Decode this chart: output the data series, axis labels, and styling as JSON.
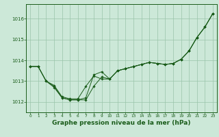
{
  "background_color": "#cce8d8",
  "grid_color": "#99c4aa",
  "line_color": "#1a5c1a",
  "marker_color": "#1a5c1a",
  "xlabel": "Graphe pression niveau de la mer (hPa)",
  "xlabel_fontsize": 6.5,
  "xlabel_color": "#1a5c1a",
  "xlim": [
    -0.5,
    23.5
  ],
  "ylim": [
    1011.5,
    1016.7
  ],
  "yticks": [
    1012,
    1013,
    1014,
    1015,
    1016
  ],
  "xticks": [
    0,
    1,
    2,
    3,
    4,
    5,
    6,
    7,
    8,
    9,
    10,
    11,
    12,
    13,
    14,
    15,
    16,
    17,
    18,
    19,
    20,
    21,
    22,
    23
  ],
  "series": [
    [
      1013.7,
      1013.7,
      1013.0,
      1012.75,
      1012.2,
      1012.1,
      1012.1,
      1012.1,
      1012.75,
      1013.2,
      1013.1,
      1013.5,
      1013.6,
      1013.7,
      1013.8,
      1013.9,
      1013.85,
      1013.8,
      1013.85,
      1014.05,
      1014.45,
      1015.1,
      1015.6,
      1016.25
    ],
    [
      1013.7,
      1013.7,
      1013.0,
      1012.8,
      1012.25,
      1012.15,
      1012.15,
      1012.75,
      1013.25,
      1013.1,
      1013.1,
      1013.5,
      1013.6,
      1013.7,
      1013.8,
      1013.9,
      1013.85,
      1013.8,
      1013.85,
      1014.05,
      1014.45,
      1015.1,
      1015.6,
      1016.25
    ],
    [
      1013.7,
      1013.7,
      1013.0,
      1012.7,
      1012.2,
      1012.1,
      1012.1,
      1012.2,
      1013.3,
      1013.45,
      1013.1,
      1013.5,
      1013.6,
      1013.7,
      1013.8,
      1013.9,
      1013.85,
      1013.8,
      1013.85,
      1014.05,
      1014.45,
      1015.1,
      1015.6,
      1016.25
    ]
  ]
}
